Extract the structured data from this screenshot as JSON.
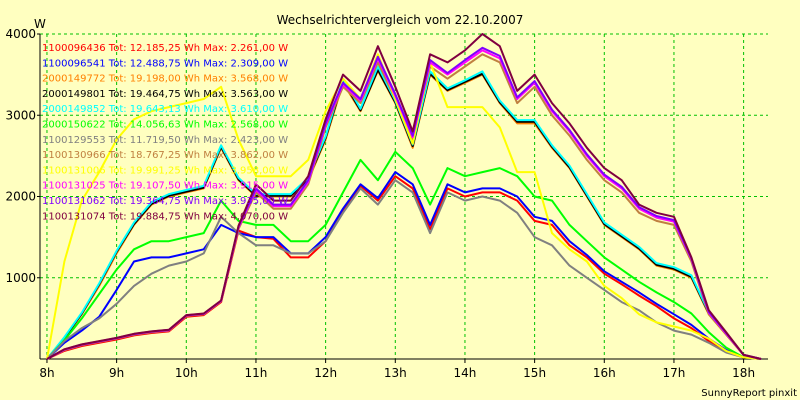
{
  "chart_data": {
    "type": "line",
    "title": "Wechselrichtervergleich vom 22.10.2007",
    "ylabel": "W",
    "xlabel": "",
    "ylim": [
      0,
      4000
    ],
    "xlim": [
      7.9,
      18.35
    ],
    "yticks": [
      1000,
      2000,
      3000,
      4000
    ],
    "xticks": [
      {
        "v": 8,
        "label": "8h"
      },
      {
        "v": 9,
        "label": "9h"
      },
      {
        "v": 10,
        "label": "10h"
      },
      {
        "v": 11,
        "label": "11h"
      },
      {
        "v": 12,
        "label": "12h"
      },
      {
        "v": 13,
        "label": "13h"
      },
      {
        "v": 14,
        "label": "14h"
      },
      {
        "v": 15,
        "label": "15h"
      },
      {
        "v": 16,
        "label": "16h"
      },
      {
        "v": 17,
        "label": "17h"
      },
      {
        "v": 18,
        "label": "18h"
      }
    ],
    "grid": true,
    "legend_position": "top-left",
    "credit": "SunnyReport pinxit",
    "x": [
      8.0,
      8.25,
      8.5,
      8.75,
      9.0,
      9.25,
      9.5,
      9.75,
      10.0,
      10.25,
      10.5,
      10.75,
      11.0,
      11.25,
      11.5,
      11.75,
      12.0,
      12.25,
      12.5,
      12.75,
      13.0,
      13.25,
      13.5,
      13.75,
      14.0,
      14.25,
      14.5,
      14.75,
      15.0,
      15.25,
      15.5,
      15.75,
      16.0,
      16.25,
      16.5,
      16.75,
      17.0,
      17.25,
      17.5,
      17.75,
      18.0,
      18.25
    ],
    "series": [
      {
        "name": "1100096436 Tot: 12.185,25 Wh Max: 2.261,00 W",
        "color": "#ff0000",
        "values": [
          0,
          100,
          160,
          200,
          240,
          290,
          320,
          340,
          520,
          540,
          700,
          1580,
          1500,
          1480,
          1250,
          1250,
          1450,
          1830,
          2130,
          1950,
          2250,
          2100,
          1600,
          2100,
          2000,
          2050,
          2050,
          1950,
          1700,
          1650,
          1400,
          1250,
          1050,
          920,
          780,
          650,
          500,
          380,
          220,
          100,
          20,
          0
        ]
      },
      {
        "name": "1100096541 Tot: 12.488,75 Wh Max: 2.309,00 W",
        "color": "#0000ff",
        "values": [
          0,
          200,
          350,
          520,
          850,
          1200,
          1250,
          1250,
          1300,
          1350,
          1650,
          1550,
          1500,
          1500,
          1300,
          1300,
          1500,
          1850,
          2150,
          1980,
          2300,
          2150,
          1650,
          2150,
          2050,
          2100,
          2100,
          2000,
          1750,
          1700,
          1450,
          1280,
          1080,
          950,
          820,
          680,
          550,
          420,
          250,
          110,
          20,
          0
        ]
      },
      {
        "name": "2000149772 Tot: 19.198,00 Wh Max: 3.568,00 W",
        "color": "#ff8000",
        "values": [
          0,
          250,
          550,
          900,
          1300,
          1650,
          1900,
          2000,
          2050,
          2100,
          2600,
          2200,
          2000,
          2000,
          2000,
          2200,
          2700,
          3400,
          3050,
          3550,
          3150,
          2600,
          3500,
          3300,
          3400,
          3500,
          3150,
          2900,
          2900,
          2600,
          2350,
          2000,
          1650,
          1500,
          1350,
          1150,
          1100,
          1000,
          550,
          300,
          50,
          0
        ]
      },
      {
        "name": "2000149801 Tot: 19.464,75 Wh Max: 3.563,00 W",
        "color": "#000000",
        "values": [
          0,
          260,
          560,
          920,
          1320,
          1660,
          1910,
          2010,
          2060,
          2110,
          2610,
          2210,
          2010,
          2010,
          2010,
          2210,
          2720,
          3420,
          3060,
          3560,
          3160,
          2620,
          3510,
          3310,
          3410,
          3510,
          3160,
          2920,
          2920,
          2610,
          2360,
          2010,
          1660,
          1510,
          1360,
          1160,
          1110,
          1010,
          560,
          310,
          50,
          0
        ]
      },
      {
        "name": "2000149852 Tot: 19.643,13 Wh Max: 3.610,00 W",
        "color": "#00ffff",
        "values": [
          0,
          270,
          570,
          930,
          1330,
          1680,
          1930,
          2030,
          2080,
          2130,
          2630,
          2230,
          2030,
          2030,
          2030,
          2230,
          2740,
          3450,
          3080,
          3600,
          3180,
          2640,
          3540,
          3330,
          3430,
          3540,
          3180,
          2940,
          2940,
          2630,
          2380,
          2030,
          1680,
          1530,
          1380,
          1180,
          1130,
          1030,
          570,
          320,
          50,
          0
        ]
      },
      {
        "name": "2000150622 Tot: 14.056,63 Wh Max: 2.568,00 W",
        "color": "#00ff00",
        "values": [
          0,
          230,
          500,
          800,
          1100,
          1350,
          1450,
          1450,
          1500,
          1550,
          1950,
          1700,
          1650,
          1650,
          1450,
          1450,
          1650,
          2050,
          2450,
          2200,
          2550,
          2350,
          1900,
          2350,
          2250,
          2300,
          2350,
          2250,
          2000,
          1950,
          1650,
          1450,
          1250,
          1100,
          950,
          820,
          700,
          560,
          330,
          140,
          20,
          0
        ]
      },
      {
        "name": "1100129553 Tot: 11.719,50 Wh Max: 2.423,00 W",
        "color": "#808080",
        "values": [
          0,
          220,
          380,
          500,
          680,
          900,
          1050,
          1150,
          1200,
          1300,
          1750,
          1550,
          1400,
          1400,
          1300,
          1300,
          1450,
          1800,
          2100,
          1900,
          2200,
          2050,
          1550,
          2050,
          1950,
          2000,
          1950,
          1800,
          1500,
          1400,
          1150,
          1000,
          850,
          700,
          600,
          450,
          350,
          300,
          200,
          80,
          20,
          0
        ]
      },
      {
        "name": "1100130966 Tot: 18.767,25 Wh Max: 3.862,00 W",
        "color": "#c08040",
        "values": [
          0,
          110,
          170,
          210,
          250,
          300,
          330,
          350,
          530,
          550,
          710,
          1600,
          2050,
          1850,
          1850,
          2150,
          2850,
          3350,
          3150,
          3650,
          3200,
          2700,
          3600,
          3450,
          3600,
          3750,
          3650,
          3150,
          3350,
          3000,
          2750,
          2450,
          2200,
          2050,
          1800,
          1700,
          1650,
          1200,
          550,
          300,
          50,
          0
        ]
      },
      {
        "name": "1100131006 Tot: 19.991,25 Wh Max: 3.958,00 W",
        "color": "#ffff00",
        "values": [
          0,
          1200,
          1950,
          2300,
          2700,
          2950,
          3050,
          3100,
          3150,
          3200,
          3350,
          2700,
          2250,
          2250,
          2250,
          2450,
          3050,
          3450,
          3200,
          3750,
          3200,
          2650,
          3650,
          3100,
          3100,
          3100,
          2850,
          2300,
          2300,
          1550,
          1350,
          1200,
          900,
          750,
          550,
          450,
          400,
          350,
          250,
          100,
          20,
          0
        ]
      },
      {
        "name": "1100131025 Tot: 19.107,50 Wh Max: 3.915,00 W",
        "color": "#ff00ff",
        "values": [
          0,
          115,
          175,
          215,
          255,
          305,
          335,
          355,
          535,
          555,
          715,
          1620,
          2080,
          1880,
          1880,
          2180,
          2880,
          3380,
          3180,
          3700,
          3240,
          2730,
          3650,
          3500,
          3650,
          3800,
          3700,
          3200,
          3400,
          3050,
          2800,
          2500,
          2250,
          2100,
          1850,
          1740,
          1690,
          1230,
          570,
          310,
          50,
          0
        ]
      },
      {
        "name": "1100131062 Tot: 19.364,75 Wh Max: 3.935,00 W",
        "color": "#8000ff",
        "values": [
          0,
          118,
          178,
          218,
          258,
          308,
          338,
          358,
          538,
          558,
          718,
          1630,
          2100,
          1900,
          1900,
          2200,
          2900,
          3400,
          3200,
          3720,
          3260,
          2750,
          3680,
          3520,
          3680,
          3830,
          3730,
          3220,
          3420,
          3070,
          2820,
          2520,
          2270,
          2120,
          1870,
          1760,
          1710,
          1240,
          580,
          320,
          50,
          0
        ]
      },
      {
        "name": "1100131074 Tot: 19.884,75 Wh Max: 4.070,00 W",
        "color": "#800040",
        "values": [
          0,
          120,
          180,
          220,
          260,
          310,
          340,
          360,
          540,
          560,
          720,
          1640,
          2150,
          1950,
          1950,
          2250,
          2950,
          3500,
          3300,
          3850,
          3350,
          2800,
          3750,
          3650,
          3800,
          4000,
          3850,
          3300,
          3500,
          3150,
          2900,
          2600,
          2350,
          2200,
          1900,
          1800,
          1750,
          1250,
          600,
          330,
          50,
          0
        ]
      }
    ]
  }
}
